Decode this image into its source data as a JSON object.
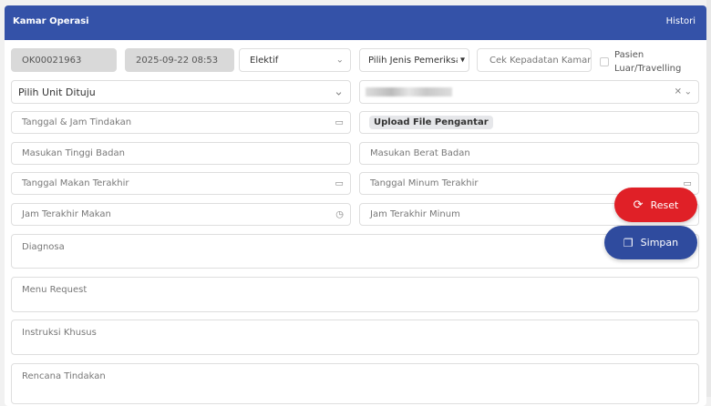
{
  "header": {
    "title": "Kamar Operasi",
    "history_link": "Histori"
  },
  "row1": {
    "order_no": "OK00021963",
    "datetime": "2025-09-22 08:53",
    "type": "Elektif",
    "exam_type_placeholder": "Pilih Jenis Pemeriksaan",
    "density_placeholder": "Cek Kepadatan Kamar",
    "external_label": "Pasien Luar/Travelling"
  },
  "row2": {
    "unit_placeholder": "Pilih Unit Dituju"
  },
  "fields": {
    "action_datetime": "Tanggal & Jam Tindakan",
    "upload": "Upload File Pengantar",
    "height": "Masukan Tinggi Badan",
    "weight": "Masukan Berat Badan",
    "last_meal_date": "Tanggal Makan Terakhir",
    "last_drink_date": "Tanggal Minum Terakhir",
    "last_meal_time": "Jam Terakhir Makan",
    "last_drink_time": "Jam Terakhir Minum",
    "diagnosis": "Diagnosa",
    "menu_request": "Menu Request",
    "special_instructions": "Instruksi Khusus",
    "action_plan": "Rencana Tindakan"
  },
  "actions": {
    "reset": "Reset",
    "save": "Simpan"
  },
  "colors": {
    "header": "#3452a8",
    "reset": "#e02027",
    "save": "#2f4b9e"
  }
}
